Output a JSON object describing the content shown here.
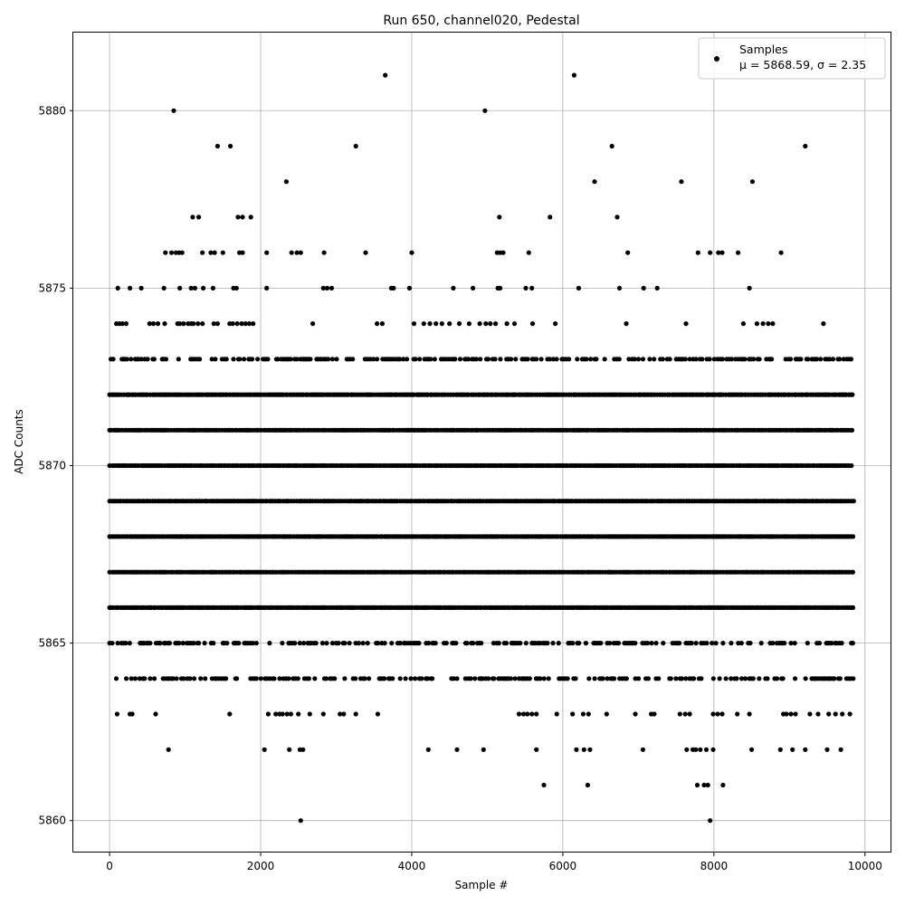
{
  "chart_data": {
    "type": "scatter",
    "title": "Run 650, channel020, Pedestal",
    "xlabel": "Sample #",
    "ylabel": "ADC Counts",
    "xlim": [
      -480,
      10350
    ],
    "ylim": [
      5859.1,
      5882.2
    ],
    "xticks": [
      0,
      2000,
      4000,
      6000,
      8000,
      10000
    ],
    "yticks": [
      5860,
      5865,
      5870,
      5875,
      5880
    ],
    "grid": true,
    "marker_color": "#000000",
    "legend": {
      "placement": "top-right",
      "series_label": "Samples",
      "stats_label": "μ = 5868.59, σ = 2.35"
    },
    "n_samples": 9850,
    "dense_levels": [
      5864,
      5865,
      5866,
      5867,
      5868,
      5869,
      5870,
      5871,
      5872,
      5873
    ],
    "sparse_points": [
      {
        "x": 850,
        "y": 5880
      },
      {
        "x": 3650,
        "y": 5881
      },
      {
        "x": 4970,
        "y": 5880
      },
      {
        "x": 6150,
        "y": 5881
      },
      {
        "x": 1430,
        "y": 5879
      },
      {
        "x": 1600,
        "y": 5879
      },
      {
        "x": 3260,
        "y": 5879
      },
      {
        "x": 6650,
        "y": 5879
      },
      {
        "x": 9210,
        "y": 5879
      },
      {
        "x": 2340,
        "y": 5878
      },
      {
        "x": 6420,
        "y": 5878
      },
      {
        "x": 7570,
        "y": 5878
      },
      {
        "x": 8510,
        "y": 5878
      },
      {
        "x": 1100,
        "y": 5877
      },
      {
        "x": 1180,
        "y": 5877
      },
      {
        "x": 1700,
        "y": 5877
      },
      {
        "x": 1760,
        "y": 5877
      },
      {
        "x": 1870,
        "y": 5877
      },
      {
        "x": 5160,
        "y": 5877
      },
      {
        "x": 5830,
        "y": 5877
      },
      {
        "x": 6720,
        "y": 5877
      },
      {
        "x": 2530,
        "y": 5860
      },
      {
        "x": 7950,
        "y": 5860
      },
      {
        "x": 5750,
        "y": 5861
      },
      {
        "x": 6330,
        "y": 5861
      },
      {
        "x": 7780,
        "y": 5861
      },
      {
        "x": 7870,
        "y": 5861
      },
      {
        "x": 7920,
        "y": 5861
      },
      {
        "x": 8120,
        "y": 5861
      },
      {
        "x": 780,
        "y": 5862
      },
      {
        "x": 2050,
        "y": 5862
      },
      {
        "x": 2380,
        "y": 5862
      },
      {
        "x": 2520,
        "y": 5862
      },
      {
        "x": 2560,
        "y": 5862
      },
      {
        "x": 4220,
        "y": 5862
      },
      {
        "x": 4600,
        "y": 5862
      },
      {
        "x": 4950,
        "y": 5862
      },
      {
        "x": 5650,
        "y": 5862
      },
      {
        "x": 6180,
        "y": 5862
      },
      {
        "x": 6280,
        "y": 5862
      },
      {
        "x": 6360,
        "y": 5862
      },
      {
        "x": 7060,
        "y": 5862
      },
      {
        "x": 7640,
        "y": 5862
      },
      {
        "x": 7720,
        "y": 5862
      },
      {
        "x": 7760,
        "y": 5862
      },
      {
        "x": 7820,
        "y": 5862
      },
      {
        "x": 7900,
        "y": 5862
      },
      {
        "x": 7990,
        "y": 5862
      },
      {
        "x": 8500,
        "y": 5862
      },
      {
        "x": 8880,
        "y": 5862
      },
      {
        "x": 9040,
        "y": 5862
      },
      {
        "x": 9210,
        "y": 5862
      },
      {
        "x": 9500,
        "y": 5862
      },
      {
        "x": 9680,
        "y": 5862
      }
    ],
    "medium_levels": [
      {
        "y": 5876,
        "x": [
          740,
          820,
          880,
          920,
          960,
          1230,
          1340,
          1390,
          1500,
          1720,
          1760,
          2080,
          2410,
          2480,
          2530,
          2840,
          3390,
          4000,
          5130,
          5170,
          5210,
          5550,
          6860,
          7790,
          7950,
          8060,
          8110,
          8320,
          8890
        ]
      },
      {
        "y": 5875,
        "x": [
          110,
          270,
          420,
          720,
          930,
          1080,
          1130,
          1240,
          1370,
          1640,
          1680,
          2080,
          2830,
          2880,
          2940,
          3730,
          3760,
          3970,
          4550,
          4810,
          5140,
          5170,
          5510,
          5590,
          6210,
          6750,
          7070,
          7250,
          8470
        ]
      },
      {
        "y": 5874,
        "x": [
          90,
          130,
          170,
          220,
          530,
          580,
          640,
          730,
          900,
          930,
          980,
          1040,
          1080,
          1110,
          1170,
          1230,
          1380,
          1430,
          1590,
          1630,
          1690,
          1750,
          1800,
          1850,
          1900,
          2690,
          3540,
          3610,
          4030,
          4160,
          4240,
          4320,
          4400,
          4500,
          4630,
          4760,
          4900,
          4980,
          5040,
          5110,
          5260,
          5360,
          5600,
          5900,
          6840,
          7630,
          8390,
          8570,
          8650,
          8720,
          8780,
          9450
        ]
      },
      {
        "y": 5863,
        "x": [
          100,
          270,
          300,
          610,
          1590,
          2100,
          2200,
          2250,
          2290,
          2350,
          2400,
          2500,
          2650,
          2830,
          3050,
          3100,
          3260,
          3550,
          5420,
          5480,
          5530,
          5590,
          5650,
          5920,
          6130,
          6270,
          6340,
          6580,
          6960,
          7170,
          7210,
          7550,
          7620,
          7680,
          7990,
          8050,
          8110,
          8310,
          8470,
          8920,
          8960,
          9020,
          9080,
          9270,
          9380,
          9520,
          9610,
          9700,
          9800
        ]
      }
    ]
  }
}
